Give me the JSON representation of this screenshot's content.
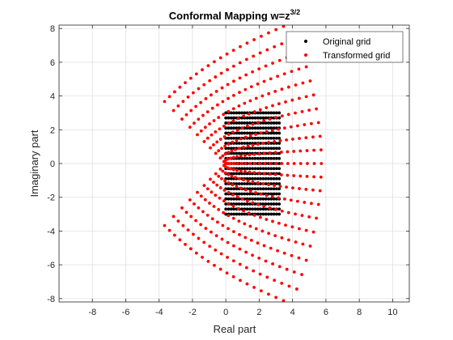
{
  "chart_data": {
    "type": "scatter",
    "title_main": "Conformal Mapping w=z",
    "title_superscript": "3/2",
    "xlabel": "Real part",
    "ylabel": "Imaginary part",
    "xlim": [
      -10,
      11
    ],
    "ylim": [
      -8.2,
      8.2
    ],
    "xticks": [
      -8,
      -6,
      -4,
      -2,
      0,
      2,
      4,
      6,
      8,
      10
    ],
    "yticks": [
      -8,
      -6,
      -4,
      -2,
      0,
      2,
      4,
      6,
      8
    ],
    "grid": true,
    "legend_position": "top-right",
    "series": [
      {
        "name": "Original grid",
        "color": "#000000",
        "marker": "dot",
        "grid_re": [
          0,
          3.2
        ],
        "grid_im": [
          -3,
          3
        ],
        "re_steps": 21,
        "im_steps": 21
      },
      {
        "name": "Transformed grid",
        "color": "#ff0000",
        "marker": "dot",
        "transform": "w = z^(3/2)",
        "grid_re": [
          0,
          3.2
        ],
        "grid_im": [
          -3,
          3
        ],
        "re_steps": 21,
        "im_steps": 21
      }
    ]
  }
}
